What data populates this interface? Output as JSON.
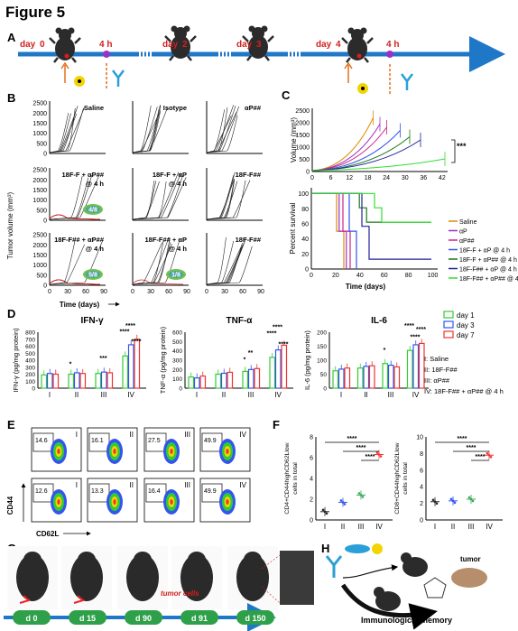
{
  "figure_title": "Figure 5",
  "panel_letters": [
    "A",
    "B",
    "C",
    "D",
    "E",
    "F",
    "G",
    "H"
  ],
  "colors": {
    "timeline_blue": "#1f77c8",
    "day_red": "#d22020",
    "injection_purple": "#9b30c8",
    "antibody_blue": "#2a9fd8",
    "arrow_orange": "#e07020",
    "green_d1": "#33cc33",
    "blue_d3": "#3355ee",
    "red_d7": "#ee3333",
    "saline_color": "#e08a00"
  },
  "panelA": {
    "labels": [
      {
        "text": "day",
        "color": "#d22020"
      },
      {
        "text": "0",
        "color": "#d22020"
      },
      {
        "text": "4 h",
        "color": "#d22020"
      },
      {
        "text": "day",
        "color": "#d22020"
      },
      {
        "text": "2",
        "color": "#d22020"
      },
      {
        "text": "day",
        "color": "#d22020"
      },
      {
        "text": "3",
        "color": "#d22020"
      },
      {
        "text": "day",
        "color": "#d22020"
      },
      {
        "text": "4",
        "color": "#d22020"
      },
      {
        "text": "4 h",
        "color": "#d22020"
      }
    ]
  },
  "panelB": {
    "titles": [
      "Saline",
      "Isotype",
      "αP##",
      "18F-F + αP##\n@ 4 h",
      "18F-F + αP\n@ 4 h",
      "18F-F##",
      "18F-F## + αP##\n@ 4 h",
      "18F-F## + αP\n@ 4 h",
      "18F-F##"
    ],
    "ratios": [
      "4/8",
      "5/8",
      "1/8"
    ],
    "y_ticks": [
      "0",
      "500",
      "1000",
      "1500",
      "2000",
      "2500"
    ],
    "x_ticks": [
      "0",
      "30",
      "60",
      "90"
    ],
    "ylabel": "Tumor volume (mm³)",
    "xlabel": "Time (days)"
  },
  "panelC": {
    "ylabel_top": "Volume (mm³)",
    "y_ticks_top": [
      "0",
      "500",
      "1000",
      "1500",
      "2000",
      "2500"
    ],
    "x_ticks_top": [
      "0",
      "6",
      "12",
      "18",
      "24",
      "30",
      "36",
      "42"
    ],
    "significance": "***",
    "ylabel_bottom": "Percent survival",
    "y_ticks_bottom": [
      "0",
      "20",
      "40",
      "60",
      "80",
      "100"
    ],
    "x_ticks_bottom": [
      "0",
      "20",
      "40",
      "60",
      "80",
      "100"
    ],
    "xlabel_bottom": "Time (days)",
    "legend": [
      {
        "label": "Saline",
        "color": "#e08a00"
      },
      {
        "label": "αP",
        "color": "#9b30c8"
      },
      {
        "label": "αP##",
        "color": "#cc2288"
      },
      {
        "label": "18F-F + αP @ 4 h",
        "color": "#3355ee"
      },
      {
        "label": "18F-F + αP## @ 4 h",
        "color": "#1a7a1a"
      },
      {
        "label": "18F-F## + αP @ 4 h",
        "color": "#222299"
      },
      {
        "label": "18F-F## + αP## @ 4 h",
        "color": "#33dd33"
      }
    ]
  },
  "panelD": {
    "titles": [
      "IFN-γ",
      "TNF-α",
      "IL-6"
    ],
    "ylabels": [
      "IFN-γ (pg/mg protein)",
      "TNF-α (pg/mg protein)",
      "IL-6 (pg/mg protein)"
    ],
    "ifn_ticks": [
      "0",
      "100",
      "200",
      "300",
      "400",
      "500",
      "600",
      "700",
      "800"
    ],
    "tnf_ticks": [
      "0",
      "100",
      "200",
      "300",
      "400",
      "500",
      "600"
    ],
    "il6_ticks": [
      "0",
      "50",
      "100",
      "150",
      "200"
    ],
    "groups": [
      "I",
      "II",
      "III",
      "IV"
    ],
    "legend": [
      {
        "label": "day 1",
        "color": "#33cc33"
      },
      {
        "label": "day 3",
        "color": "#3355ee"
      },
      {
        "label": "day 7",
        "color": "#ee3333"
      }
    ],
    "group_key": [
      "I: Saline",
      "II: 18F-F##",
      "III: αP##",
      "IV: 18F-F## + αP## @ 4 h"
    ],
    "ifn_values": {
      "d1": [
        190,
        200,
        210,
        460
      ],
      "d3": [
        210,
        220,
        230,
        620
      ],
      "d7": [
        200,
        210,
        220,
        700
      ]
    },
    "tnf_values": {
      "d1": [
        120,
        150,
        180,
        330
      ],
      "d3": [
        110,
        160,
        200,
        410
      ],
      "d7": [
        130,
        170,
        210,
        460
      ]
    },
    "il6_values": {
      "d1": [
        62,
        72,
        88,
        135
      ],
      "d3": [
        68,
        78,
        82,
        155
      ],
      "d7": [
        72,
        80,
        76,
        160
      ]
    },
    "stars_ifn": [
      "*",
      "***",
      "****",
      "****",
      "****"
    ],
    "stars_tnf": [
      "*",
      "**",
      "****",
      "****",
      "****"
    ],
    "stars_il6": [
      "*",
      "****",
      "****",
      "****"
    ]
  },
  "panelE": {
    "top_values": [
      "14.6",
      "16.1",
      "27.5",
      "49.9"
    ],
    "bottom_values": [
      "12.6",
      "13.3",
      "16.4",
      "49.9"
    ],
    "roman": [
      "I",
      "II",
      "III",
      "IV"
    ],
    "ylabel": "CD44",
    "xlabel": "CD62L"
  },
  "panelF": {
    "left_ylabel": "CD4+CD44highCD62Llow cells in total cells (%)",
    "right_ylabel": "CD8+CD44highCD62Llow cells in total cells (%)",
    "left_ticks": [
      "0",
      "2",
      "4",
      "6",
      "8"
    ],
    "right_ticks": [
      "0",
      "2",
      "4",
      "6",
      "8",
      "10"
    ],
    "groups": [
      "I",
      "II",
      "III",
      "IV"
    ],
    "left_means": [
      0.8,
      1.7,
      2.4,
      6.3
    ],
    "right_means": [
      2.2,
      2.3,
      2.5,
      7.8
    ],
    "sig": [
      "****",
      "****",
      "****"
    ]
  },
  "panelG": {
    "days": [
      "d 0",
      "d 15",
      "d 90",
      "d 91",
      "d 150"
    ],
    "tumor_cells": "tumor cells"
  },
  "panelH": {
    "tumor": "tumor",
    "memory": "Immunological memory"
  }
}
